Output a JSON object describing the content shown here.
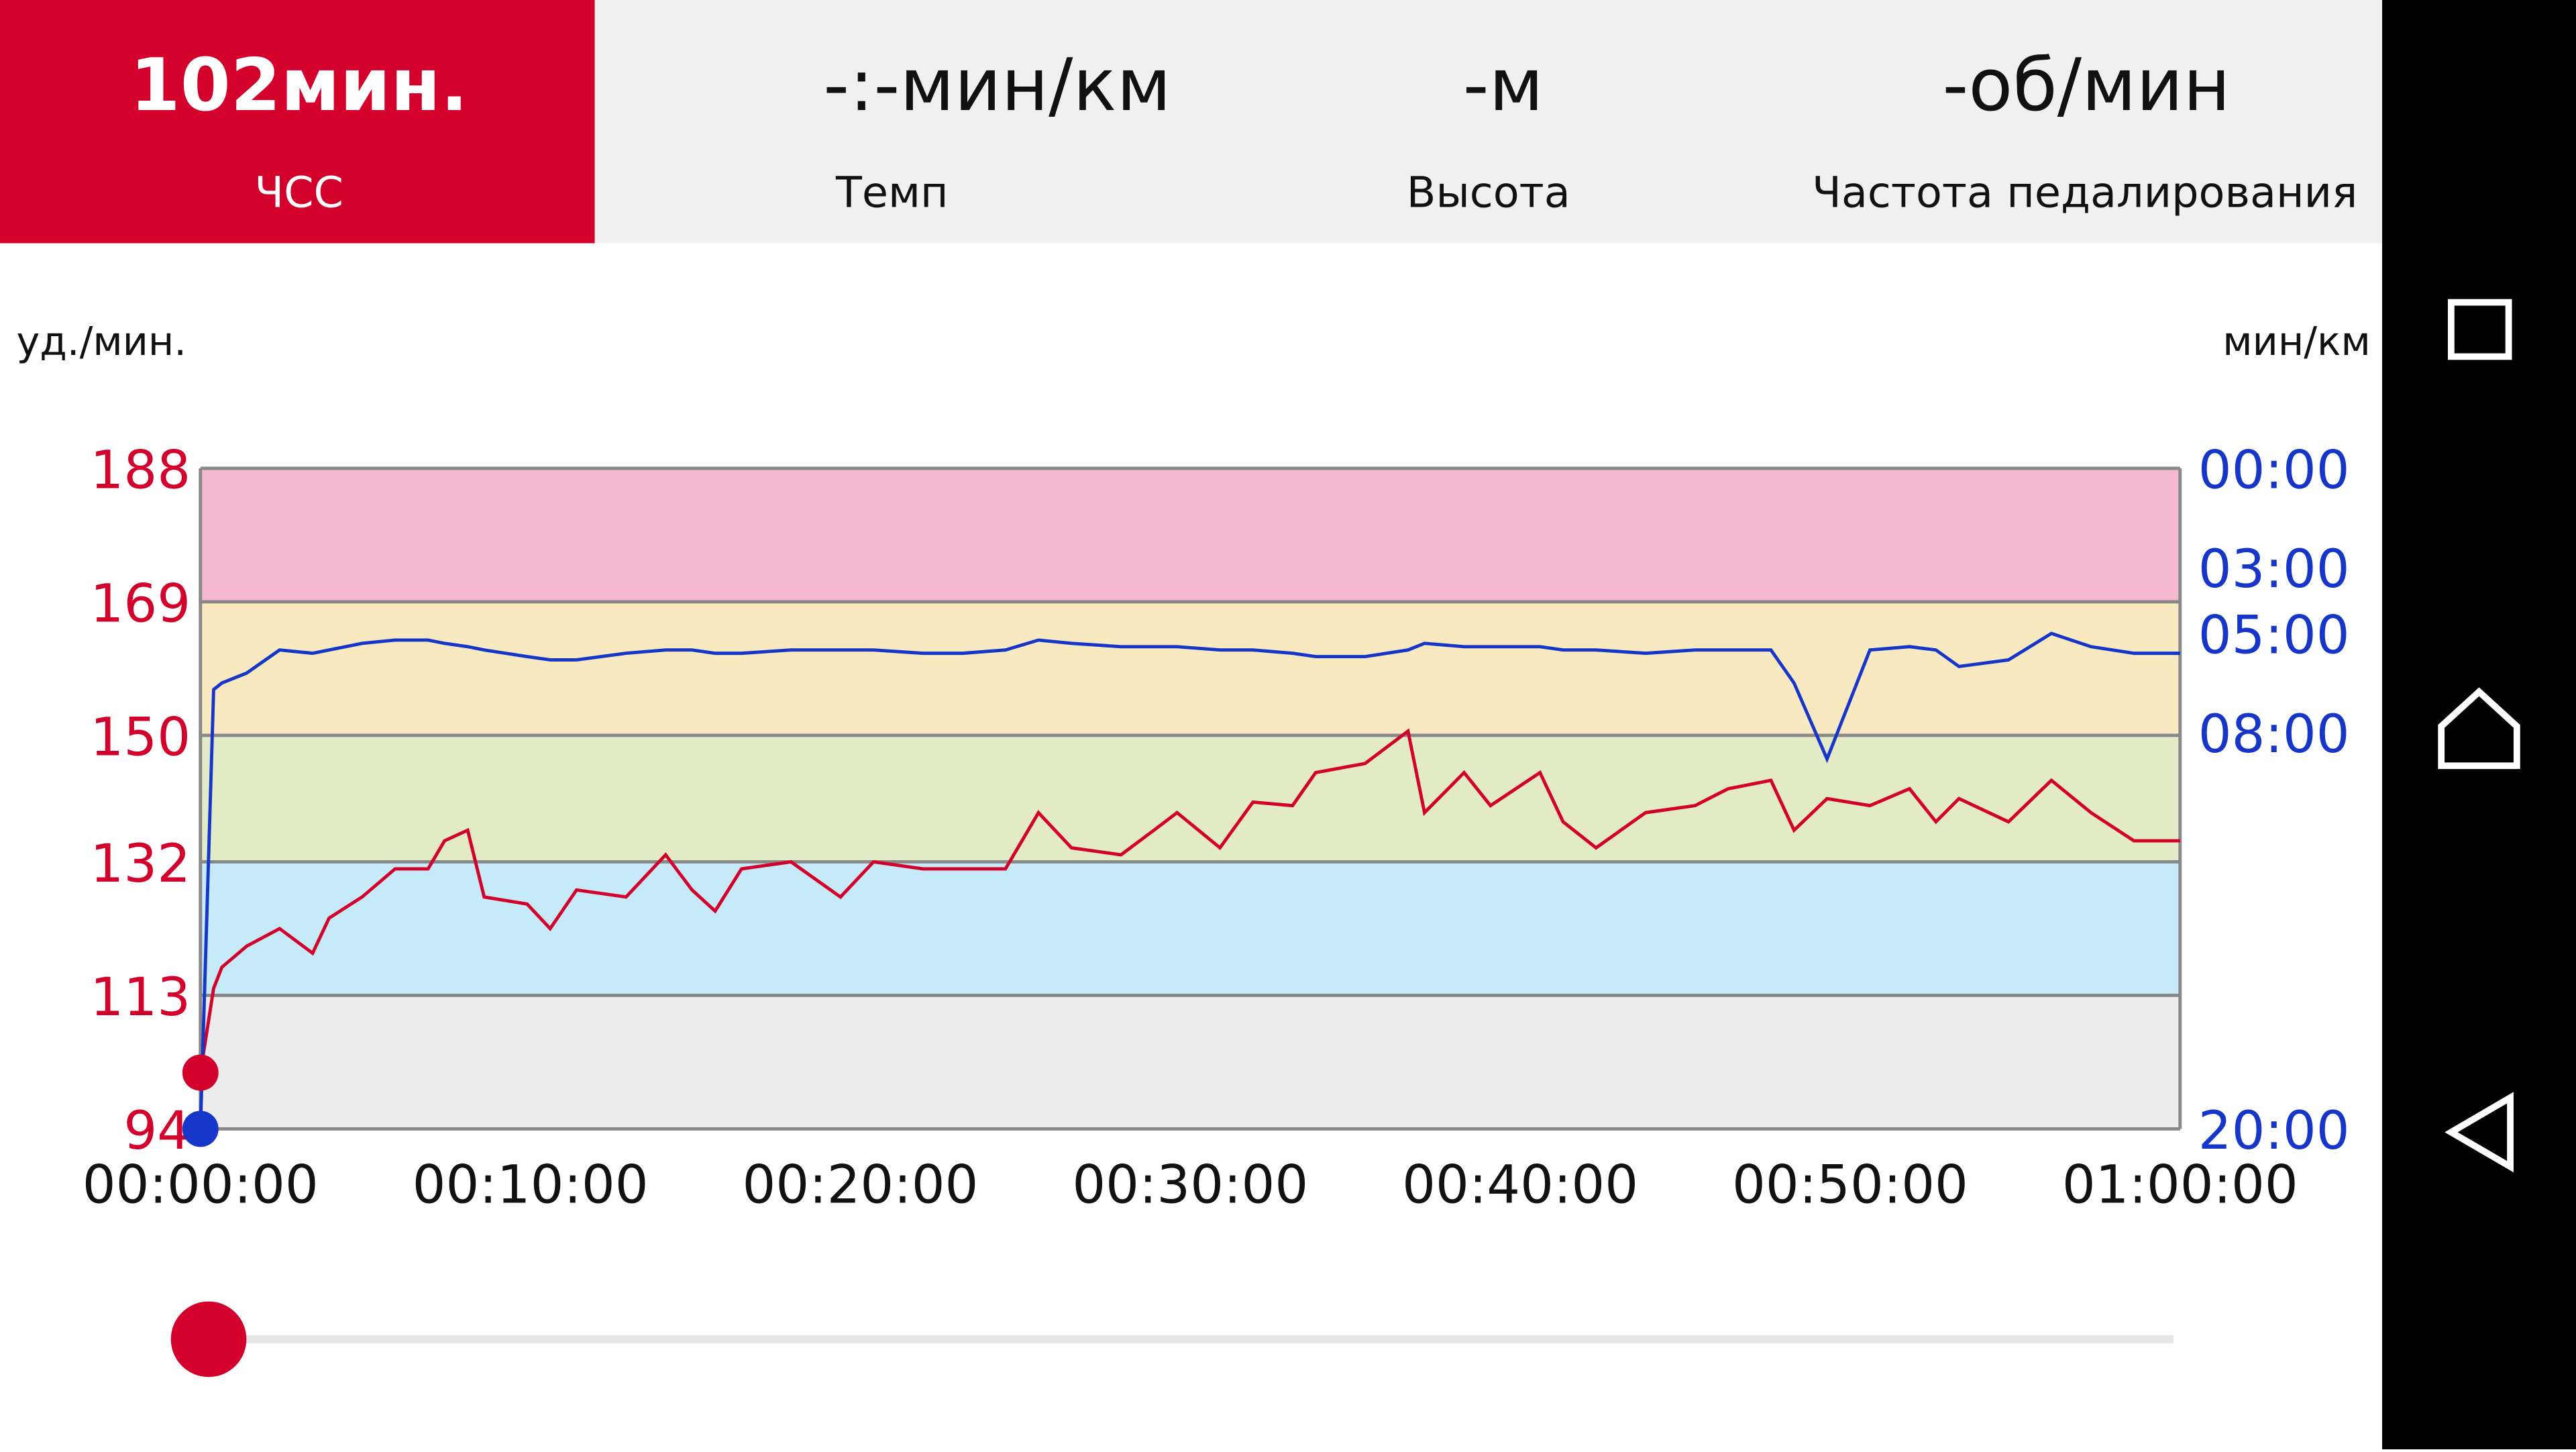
{
  "tabs": [
    {
      "value": "102мин.",
      "label": "ЧСС"
    },
    {
      "value": "-:-мин/км",
      "label": "Темп"
    },
    {
      "value": "-м",
      "label": "Высота"
    },
    {
      "value": "-об/мин",
      "label": "Частота педалирования"
    }
  ],
  "chart_data": {
    "type": "line",
    "y_label": "уд./мин.",
    "y2_label": "мин/км",
    "x": [
      0,
      0.4,
      0.65,
      1.4,
      2.4,
      3.4,
      3.9,
      4.9,
      5.9,
      6.9,
      7.4,
      8.1,
      8.6,
      9.9,
      10.6,
      11.4,
      12.9,
      14.1,
      14.9,
      15.6,
      16.4,
      17.9,
      19.4,
      20.4,
      21.9,
      23.1,
      24.4,
      25.4,
      26.4,
      27.9,
      28.9,
      29.6,
      30.9,
      31.9,
      33.1,
      33.8,
      35.3,
      36.6,
      37.1,
      38.3,
      39.1,
      40.6,
      41.3,
      42.3,
      43.8,
      45.3,
      46.3,
      47.6,
      48.3,
      49.3,
      50.6,
      51.8,
      52.6,
      53.3,
      54.8,
      56.1,
      57.3,
      58.6,
      60
    ],
    "series": [
      {
        "color": "#d2002a",
        "values": [
          102,
          114,
          117,
          120,
          122.5,
          119,
          124,
          127,
          131,
          131,
          135,
          136.5,
          127,
          126,
          122.5,
          128,
          127,
          133,
          128,
          125,
          131,
          132,
          127,
          132,
          131,
          131,
          131,
          139,
          134,
          133,
          136.5,
          139,
          134,
          140.5,
          140,
          144.7,
          146,
          150.6,
          139,
          144.7,
          140,
          144.7,
          137.7,
          134,
          139,
          140,
          142.4,
          143.6,
          136.5,
          141,
          140,
          142.4,
          137.7,
          141,
          137.7,
          143.6,
          139,
          135,
          135
        ]
      },
      {
        "color": "#1536c8",
        "axis": "y2",
        "values": [
          20,
          6.7,
          6.5,
          6.2,
          5.5,
          5.6,
          5.5,
          5.3,
          5.2,
          5.2,
          5.3,
          5.4,
          5.5,
          5.7,
          5.8,
          5.8,
          5.6,
          5.5,
          5.5,
          5.6,
          5.6,
          5.5,
          5.5,
          5.5,
          5.6,
          5.6,
          5.5,
          5.2,
          5.3,
          5.4,
          5.4,
          5.4,
          5.5,
          5.5,
          5.6,
          5.7,
          5.7,
          5.5,
          5.3,
          5.4,
          5.4,
          5.4,
          5.5,
          5.5,
          5.6,
          5.5,
          5.5,
          5.5,
          6.5,
          8.8,
          5.5,
          5.4,
          5.5,
          6.0,
          5.8,
          5.0,
          5.4,
          5.6,
          5.6
        ]
      }
    ],
    "xlim": [
      0,
      60
    ],
    "xticks": [
      {
        "value": 0,
        "label": "00:00:00"
      },
      {
        "value": 10,
        "label": "00:10:00"
      },
      {
        "value": 20,
        "label": "00:20:00"
      },
      {
        "value": 30,
        "label": "00:30:00"
      },
      {
        "value": 40,
        "label": "00:40:00"
      },
      {
        "value": 50,
        "label": "00:50:00"
      },
      {
        "value": 60,
        "label": "01:00:00"
      }
    ],
    "ylim": [
      94,
      188
    ],
    "yticks": [
      94,
      113,
      132,
      150,
      169,
      188
    ],
    "y2lim": [
      0,
      20
    ],
    "y2ticks": [
      {
        "value": 0,
        "label": "00:00"
      },
      {
        "value": 3,
        "label": "03:00"
      },
      {
        "value": 5,
        "label": "05:00"
      },
      {
        "value": 8,
        "label": "08:00"
      },
      {
        "value": 20,
        "label": "20:00"
      }
    ],
    "zones": [
      {
        "from": 94,
        "to": 113,
        "color": "#ececec"
      },
      {
        "from": 113,
        "to": 132,
        "color": "#c6eaf8"
      },
      {
        "from": 132,
        "to": 150,
        "color": "#e3eac6"
      },
      {
        "from": 150,
        "to": 169,
        "color": "#f9e9c0"
      },
      {
        "from": 169,
        "to": 188,
        "color": "#f4b9cf"
      }
    ]
  }
}
